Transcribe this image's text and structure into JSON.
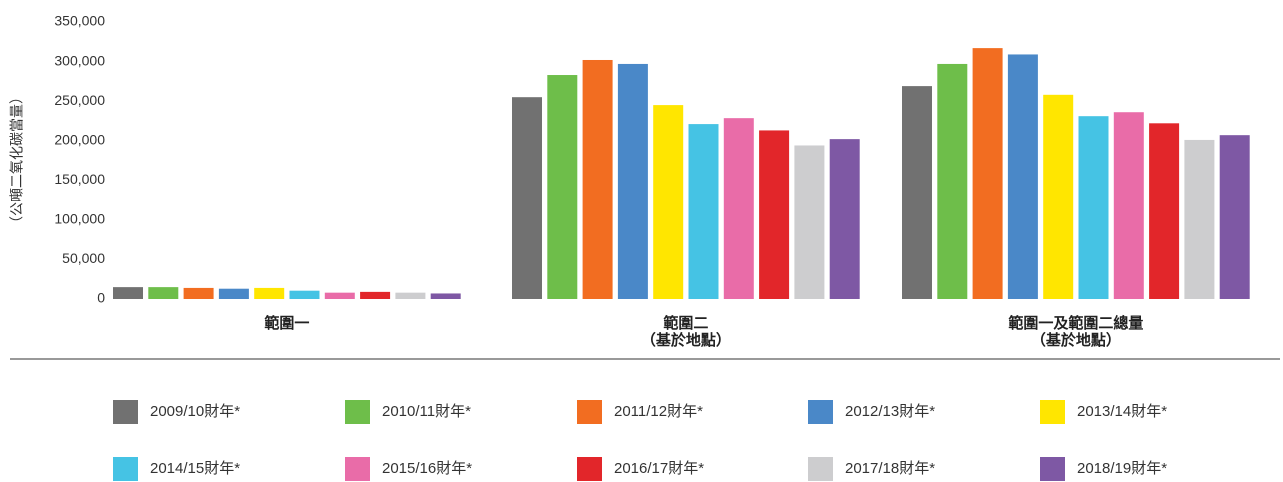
{
  "chart_data": {
    "type": "bar",
    "y_label": "（公噸二氧化碳當量）",
    "categories": [
      "範圍一",
      "範圍二\n（基於地點）",
      "範圍一及範圍二總量\n（基於地點）"
    ],
    "series": [
      {
        "name": "2009/10財年*",
        "color": "#717171",
        "values": [
          15000,
          255000,
          269000
        ]
      },
      {
        "name": "2010/11財年*",
        "color": "#6ebe4a",
        "values": [
          15000,
          283000,
          297000
        ]
      },
      {
        "name": "2011/12財年*",
        "color": "#f26d21",
        "values": [
          14000,
          302000,
          317000
        ]
      },
      {
        "name": "2012/13財年*",
        "color": "#4a88c8",
        "values": [
          13000,
          297000,
          309000
        ]
      },
      {
        "name": "2013/14財年*",
        "color": "#ffe600",
        "values": [
          14000,
          245000,
          258000
        ]
      },
      {
        "name": "2014/15財年*",
        "color": "#45c3e4",
        "values": [
          10500,
          221000,
          231000
        ]
      },
      {
        "name": "2015/16財年*",
        "color": "#e96ca8",
        "values": [
          8000,
          228500,
          236000
        ]
      },
      {
        "name": "2016/17財年*",
        "color": "#e2262a",
        "values": [
          9000,
          213000,
          222000
        ]
      },
      {
        "name": "2017/18財年*",
        "color": "#cdcdcf",
        "values": [
          8000,
          194000,
          201000
        ]
      },
      {
        "name": "2018/19財年*",
        "color": "#7e58a4",
        "values": [
          7000,
          202000,
          207000
        ]
      }
    ],
    "ylim": [
      0,
      350000
    ],
    "yticks": [
      0,
      {
        "value": 50000,
        "label": "50,000"
      },
      {
        "value": 100000,
        "label": "100,000"
      },
      {
        "value": 150000,
        "label": "150,000"
      },
      {
        "value": 200000,
        "label": "200,000"
      },
      {
        "value": 250000,
        "label": "250,000"
      },
      {
        "value": 300000,
        "label": "300,000"
      },
      {
        "value": 350000,
        "label": "350,000"
      }
    ],
    "grid": false
  }
}
